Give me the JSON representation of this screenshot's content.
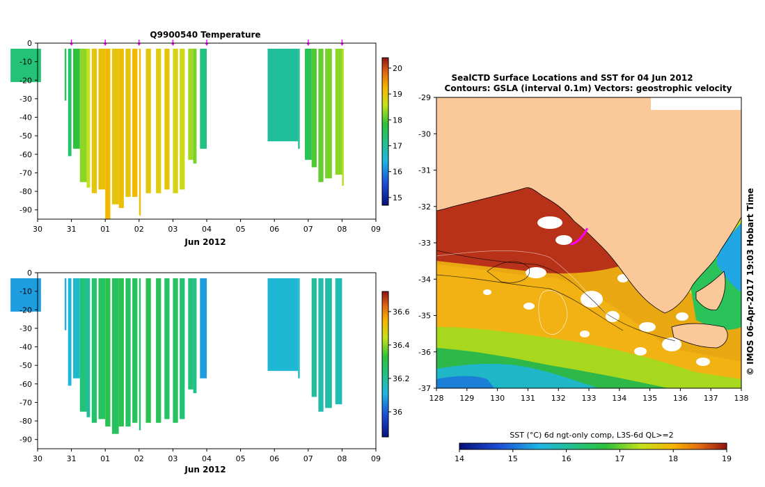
{
  "chart_data": [
    {
      "type": "heatmap",
      "name": "temperature-section",
      "title": "Q9900540  Temperature",
      "xlabel": "Jun 2012",
      "x_ticks": [
        "30",
        "31",
        "01",
        "02",
        "03",
        "04",
        "05",
        "06",
        "07",
        "08",
        "09"
      ],
      "y_ticks": [
        "0",
        "-10",
        "-20",
        "-30",
        "-40",
        "-50",
        "-60",
        "-70",
        "-80",
        "-90"
      ],
      "ylim": [
        -95,
        0
      ],
      "colorbar_ticks": [
        "15",
        "16",
        "17",
        "18",
        "19",
        "20"
      ],
      "colorbar_range": [
        14.7,
        20.4
      ],
      "profile_markers": [
        1.0,
        2.0,
        3.0,
        4.0,
        5.0,
        8.0,
        9.0
      ],
      "profiles": [
        {
          "day": -0.8,
          "w": 0.9,
          "top": -3,
          "bottom": -21,
          "value": 17.3
        },
        {
          "day": 0.8,
          "w": 0.05,
          "top": -3,
          "bottom": -31,
          "value": 17.6
        },
        {
          "day": 0.9,
          "w": 0.1,
          "top": -3,
          "bottom": -61,
          "value": 17.4
        },
        {
          "day": 1.05,
          "w": 0.2,
          "top": -3,
          "bottom": -57,
          "value": 17.8
        },
        {
          "day": 1.25,
          "w": 0.2,
          "top": -3,
          "bottom": -75,
          "value": 18.3
        },
        {
          "day": 1.45,
          "w": 0.1,
          "top": -3,
          "bottom": -78,
          "value": 18.6
        },
        {
          "day": 1.6,
          "w": 0.15,
          "top": -3,
          "bottom": -81,
          "value": 19.0
        },
        {
          "day": 1.8,
          "w": 0.2,
          "top": -3,
          "bottom": -79,
          "value": 19.1
        },
        {
          "day": 2.0,
          "w": 0.15,
          "top": -3,
          "bottom": -95,
          "value": 19.2
        },
        {
          "day": 2.2,
          "w": 0.2,
          "top": -3,
          "bottom": -87,
          "value": 19.0
        },
        {
          "day": 2.4,
          "w": 0.15,
          "top": -3,
          "bottom": -89,
          "value": 19.1
        },
        {
          "day": 2.6,
          "w": 0.15,
          "top": -3,
          "bottom": -83,
          "value": 19.0
        },
        {
          "day": 2.8,
          "w": 0.15,
          "top": -3,
          "bottom": -83,
          "value": 19.2
        },
        {
          "day": 3.0,
          "w": 0.05,
          "top": -3,
          "bottom": -93,
          "value": 19.1
        },
        {
          "day": 3.2,
          "w": 0.15,
          "top": -3,
          "bottom": -81,
          "value": 19.0
        },
        {
          "day": 3.5,
          "w": 0.15,
          "top": -3,
          "bottom": -81,
          "value": 18.9
        },
        {
          "day": 3.75,
          "w": 0.15,
          "top": -3,
          "bottom": -79,
          "value": 19.0
        },
        {
          "day": 4.0,
          "w": 0.15,
          "top": -3,
          "bottom": -81,
          "value": 18.8
        },
        {
          "day": 4.2,
          "w": 0.15,
          "top": -3,
          "bottom": -79,
          "value": 18.7
        },
        {
          "day": 4.45,
          "w": 0.15,
          "top": -3,
          "bottom": -63,
          "value": 18.4
        },
        {
          "day": 4.6,
          "w": 0.1,
          "top": -3,
          "bottom": -65,
          "value": 18.2
        },
        {
          "day": 4.8,
          "w": 0.2,
          "top": -3,
          "bottom": -57,
          "value": 17.2
        },
        {
          "day": 6.8,
          "w": 0.9,
          "top": -3,
          "bottom": -53,
          "value": 17.0
        },
        {
          "day": 7.7,
          "w": 0.05,
          "top": -3,
          "bottom": -57,
          "value": 17.1
        },
        {
          "day": 7.9,
          "w": 0.2,
          "top": -3,
          "bottom": -63,
          "value": 17.6
        },
        {
          "day": 8.1,
          "w": 0.15,
          "top": -3,
          "bottom": -67,
          "value": 18.0
        },
        {
          "day": 8.3,
          "w": 0.15,
          "top": -3,
          "bottom": -75,
          "value": 18.1
        },
        {
          "day": 8.5,
          "w": 0.2,
          "top": -3,
          "bottom": -73,
          "value": 18.2
        },
        {
          "day": 8.8,
          "w": 0.2,
          "top": -3,
          "bottom": -71,
          "value": 18.3
        },
        {
          "day": 9.0,
          "w": 0.05,
          "top": -3,
          "bottom": -77,
          "value": 18.5
        }
      ]
    },
    {
      "type": "heatmap",
      "name": "salinity-section",
      "xlabel": "Jun 2012",
      "x_ticks": [
        "30",
        "31",
        "01",
        "02",
        "03",
        "04",
        "05",
        "06",
        "07",
        "08",
        "09"
      ],
      "y_ticks": [
        "0",
        "-10",
        "-20",
        "-30",
        "-40",
        "-50",
        "-60",
        "-70",
        "-80",
        "-90"
      ],
      "ylim": [
        -95,
        0
      ],
      "colorbar_ticks": [
        "36",
        "36.2",
        "36.4",
        "36.6"
      ],
      "colorbar_range": [
        35.85,
        36.72
      ],
      "profiles": [
        {
          "day": -0.8,
          "w": 0.9,
          "top": -3,
          "bottom": -21,
          "value": 36.08
        },
        {
          "day": 0.8,
          "w": 0.05,
          "top": -3,
          "bottom": -31,
          "value": 36.1
        },
        {
          "day": 0.9,
          "w": 0.1,
          "top": -3,
          "bottom": -61,
          "value": 36.12
        },
        {
          "day": 1.05,
          "w": 0.2,
          "top": -3,
          "bottom": -57,
          "value": 36.14
        },
        {
          "day": 1.25,
          "w": 0.2,
          "top": -3,
          "bottom": -75,
          "value": 36.24
        },
        {
          "day": 1.45,
          "w": 0.1,
          "top": -3,
          "bottom": -78,
          "value": 36.2
        },
        {
          "day": 1.6,
          "w": 0.15,
          "top": -3,
          "bottom": -81,
          "value": 36.26
        },
        {
          "day": 1.8,
          "w": 0.2,
          "top": -3,
          "bottom": -79,
          "value": 36.28
        },
        {
          "day": 2.0,
          "w": 0.15,
          "top": -3,
          "bottom": -83,
          "value": 36.3
        },
        {
          "day": 2.2,
          "w": 0.2,
          "top": -3,
          "bottom": -87,
          "value": 36.28
        },
        {
          "day": 2.4,
          "w": 0.15,
          "top": -3,
          "bottom": -83,
          "value": 36.3
        },
        {
          "day": 2.6,
          "w": 0.15,
          "top": -3,
          "bottom": -83,
          "value": 36.27
        },
        {
          "day": 2.8,
          "w": 0.15,
          "top": -3,
          "bottom": -81,
          "value": 36.28
        },
        {
          "day": 3.0,
          "w": 0.05,
          "top": -3,
          "bottom": -85,
          "value": 36.26
        },
        {
          "day": 3.2,
          "w": 0.15,
          "top": -3,
          "bottom": -81,
          "value": 36.3
        },
        {
          "day": 3.5,
          "w": 0.15,
          "top": -3,
          "bottom": -81,
          "value": 36.29
        },
        {
          "day": 3.75,
          "w": 0.15,
          "top": -3,
          "bottom": -79,
          "value": 36.27
        },
        {
          "day": 4.0,
          "w": 0.15,
          "top": -3,
          "bottom": -81,
          "value": 36.28
        },
        {
          "day": 4.2,
          "w": 0.15,
          "top": -3,
          "bottom": -79,
          "value": 36.25
        },
        {
          "day": 4.45,
          "w": 0.15,
          "top": -3,
          "bottom": -63,
          "value": 36.24
        },
        {
          "day": 4.6,
          "w": 0.1,
          "top": -3,
          "bottom": -65,
          "value": 36.22
        },
        {
          "day": 4.8,
          "w": 0.2,
          "top": -3,
          "bottom": -57,
          "value": 36.08
        },
        {
          "day": 6.8,
          "w": 0.9,
          "top": -3,
          "bottom": -53,
          "value": 36.13
        },
        {
          "day": 7.7,
          "w": 0.05,
          "top": -3,
          "bottom": -57,
          "value": 36.14
        },
        {
          "day": 8.1,
          "w": 0.15,
          "top": -3,
          "bottom": -67,
          "value": 36.2
        },
        {
          "day": 8.3,
          "w": 0.15,
          "top": -3,
          "bottom": -75,
          "value": 36.18
        },
        {
          "day": 8.5,
          "w": 0.2,
          "top": -3,
          "bottom": -73,
          "value": 36.19
        },
        {
          "day": 8.8,
          "w": 0.2,
          "top": -3,
          "bottom": -71,
          "value": 36.17
        }
      ]
    },
    {
      "type": "heatmap",
      "name": "sst-map",
      "title_line1": "SealCTD Surface Locations and SST for 04 Jun 2012",
      "title_line2": "Contours: GSLA (interval 0.1m) Vectors: geostrophic velocity",
      "x_ticks": [
        "128",
        "129",
        "130",
        "131",
        "132",
        "133",
        "134",
        "135",
        "136",
        "137",
        "138"
      ],
      "y_ticks": [
        "-29",
        "-30",
        "-31",
        "-32",
        "-33",
        "-34",
        "-35",
        "-36",
        "-37"
      ],
      "xlim": [
        128,
        138
      ],
      "ylim": [
        -37,
        -29
      ],
      "colorbar_label": "SST (°C) 6d ngt-only comp, L3S-6d QL>=2",
      "colorbar_ticks": [
        "14",
        "15",
        "16",
        "17",
        "18",
        "19"
      ],
      "colorbar_range": [
        14,
        19
      ],
      "seal_track": [
        {
          "lon": 132.4,
          "lat": -33.05
        },
        {
          "lon": 132.55,
          "lat": -33.0
        },
        {
          "lon": 132.7,
          "lat": -32.9
        },
        {
          "lon": 132.85,
          "lat": -32.75
        },
        {
          "lon": 132.95,
          "lat": -32.6
        }
      ],
      "credit": "© IMOS 06-Apr-2017 19:03 Hobart Time"
    }
  ],
  "colors": {
    "land": "#fbc999",
    "magenta": "#ff00ff"
  }
}
